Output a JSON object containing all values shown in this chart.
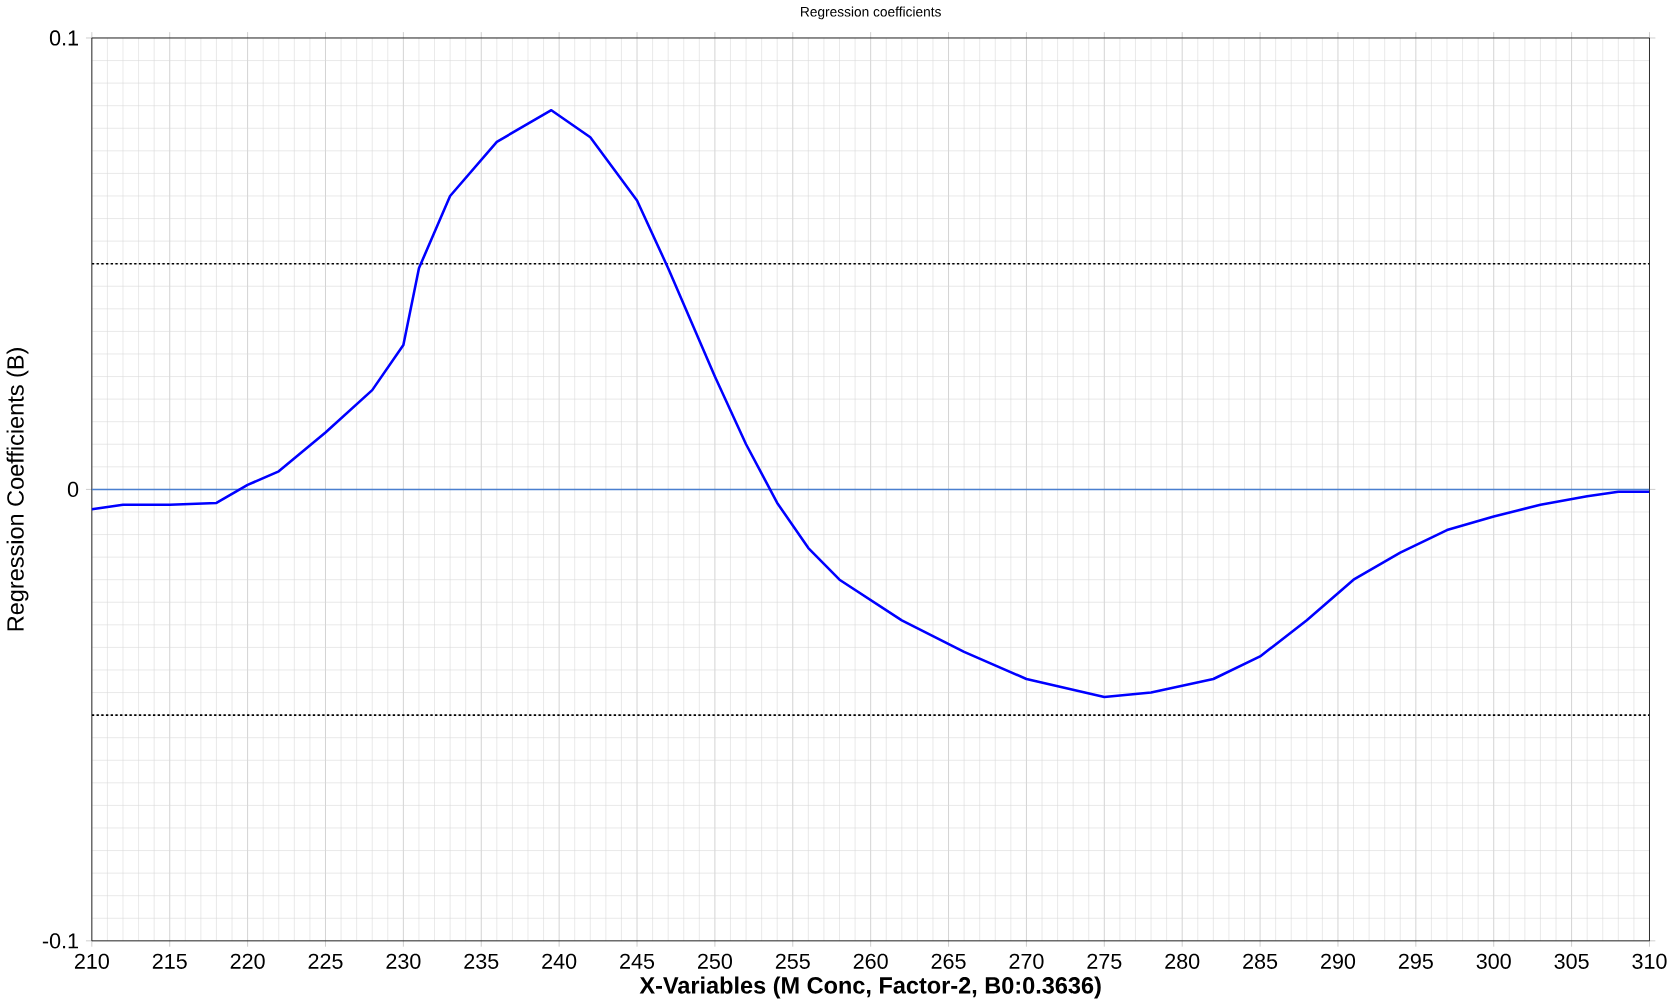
{
  "chart_data": {
    "type": "line",
    "title": "Regression coefficients",
    "xlabel": "X-Variables (M Conc, Factor-2, B0:0.3636)",
    "ylabel": "Regression Coefficients (B)",
    "xlim": [
      210,
      310
    ],
    "ylim": [
      -0.1,
      0.1
    ],
    "xticks": [
      210,
      215,
      220,
      225,
      230,
      235,
      240,
      245,
      250,
      255,
      260,
      265,
      270,
      275,
      280,
      285,
      290,
      295,
      300,
      305,
      310
    ],
    "yticks": [
      -0.1,
      0,
      0.1
    ],
    "grid": true,
    "line_style": "solid",
    "marker": "none",
    "ref_lines": [
      {
        "axis": "y",
        "value": 0.05,
        "color": "#000000",
        "line_style": "dotted"
      },
      {
        "axis": "y",
        "value": -0.05,
        "color": "#000000",
        "line_style": "dotted"
      },
      {
        "axis": "y",
        "value": 0,
        "color": "#4a7fd0",
        "line_style": "solid"
      }
    ],
    "series": [
      {
        "color": "#0000ff",
        "x": [
          210,
          212,
          215,
          218,
          220,
          222,
          225,
          228,
          230,
          231,
          233,
          236,
          239.5,
          242,
          245,
          247,
          250,
          252,
          254,
          256,
          258,
          262,
          266,
          270,
          275,
          278,
          282,
          285,
          288,
          291,
          294,
          297,
          300,
          303,
          306,
          308,
          310
        ],
        "values": [
          -0.0044,
          -0.0034,
          -0.0034,
          -0.003,
          0.001,
          0.004,
          0.0126,
          0.022,
          0.032,
          0.049,
          0.065,
          0.077,
          0.084,
          0.078,
          0.064,
          0.049,
          0.025,
          0.01,
          -0.003,
          -0.013,
          -0.02,
          -0.029,
          -0.036,
          -0.042,
          -0.046,
          -0.045,
          -0.042,
          -0.037,
          -0.029,
          -0.02,
          -0.014,
          -0.009,
          -0.006,
          -0.0034,
          -0.0015,
          -0.0005,
          -0.0005
        ]
      }
    ]
  }
}
